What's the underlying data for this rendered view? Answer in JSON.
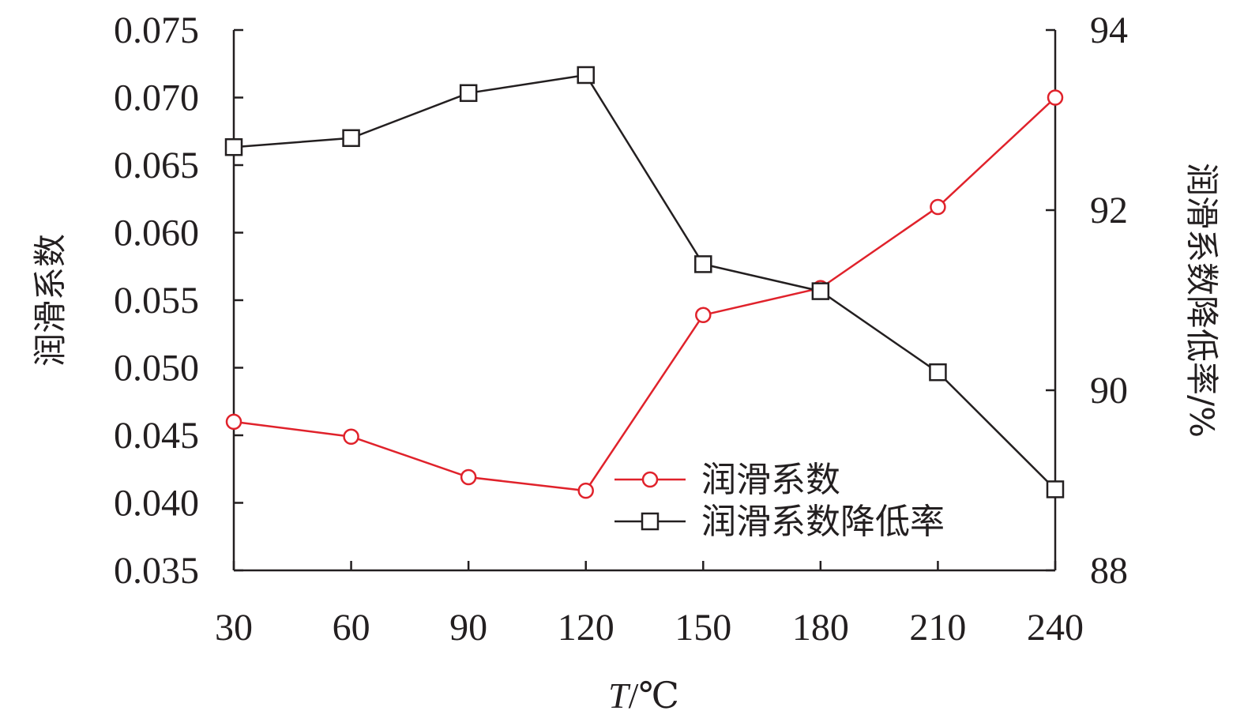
{
  "chart_data": {
    "type": "line",
    "xlabel": "T/℃",
    "xlabel_italic": "T",
    "xlabel_unit": "/℃",
    "x": [
      30,
      60,
      90,
      120,
      150,
      180,
      210,
      240
    ],
    "x_ticks": [
      "30",
      "60",
      "90",
      "120",
      "150",
      "180",
      "210",
      "240"
    ],
    "y_left": {
      "label": "润滑系数",
      "lim": [
        0.035,
        0.075
      ],
      "ticks": [
        "0.035",
        "0.040",
        "0.045",
        "0.050",
        "0.055",
        "0.060",
        "0.065",
        "0.070",
        "0.075"
      ],
      "tick_values": [
        0.035,
        0.04,
        0.045,
        0.05,
        0.055,
        0.06,
        0.065,
        0.07,
        0.075
      ]
    },
    "y_right": {
      "label": "润滑系数降低率/%",
      "lim": [
        88,
        94
      ],
      "ticks": [
        "88",
        "90",
        "92",
        "94"
      ],
      "tick_values": [
        88,
        90,
        92,
        94
      ]
    },
    "series": [
      {
        "name": "润滑系数",
        "axis": "left",
        "marker": "circle",
        "color": "#e0222b",
        "values": [
          0.046,
          0.0449,
          0.0419,
          0.0409,
          0.0539,
          0.0559,
          0.0619,
          0.07
        ]
      },
      {
        "name": "润滑系数降低率",
        "axis": "right",
        "marker": "square",
        "color": "#231f20",
        "values": [
          92.7,
          92.8,
          93.3,
          93.5,
          91.4,
          91.1,
          90.2,
          88.9
        ]
      }
    ],
    "legend_position": "bottom-right",
    "grid": false
  }
}
